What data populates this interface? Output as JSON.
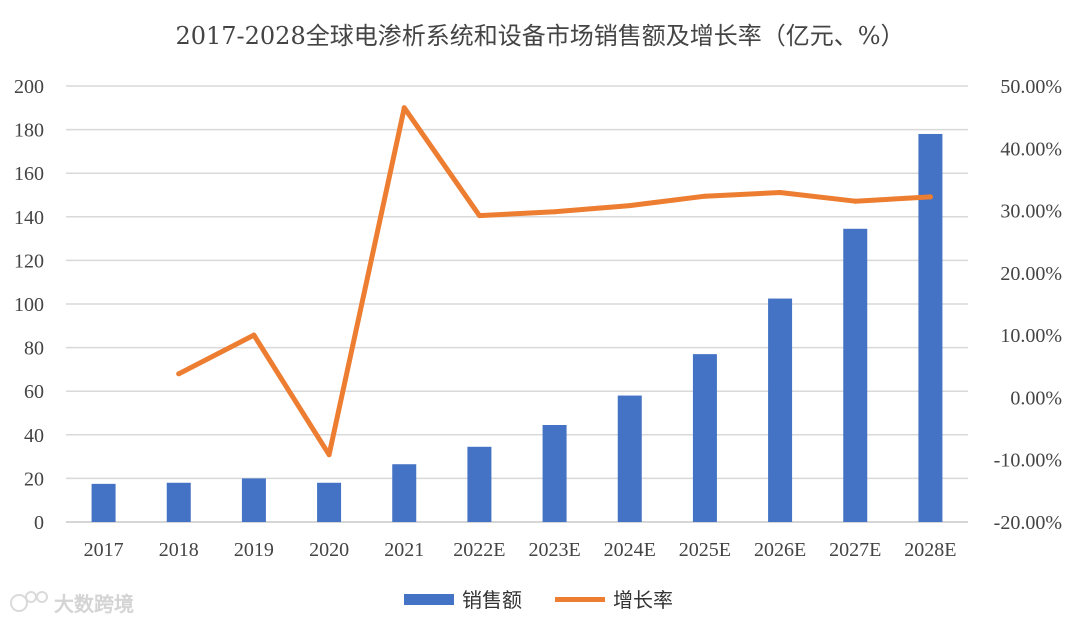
{
  "chart_data": {
    "type": "bar+line",
    "title": "2017-2028全球电渗析系统和设备市场销售额及增长率（亿元、%）",
    "categories": [
      "2017",
      "2018",
      "2019",
      "2020",
      "2021",
      "2022E",
      "2023E",
      "2024E",
      "2025E",
      "2026E",
      "2027E",
      "2028E"
    ],
    "series": [
      {
        "name": "销售额",
        "type": "bar",
        "axis": "left",
        "color": "#4472C4",
        "values": [
          17.5,
          18,
          20,
          18,
          26.5,
          34.5,
          44.5,
          58,
          77,
          102.5,
          134.5,
          178
        ]
      },
      {
        "name": "增长率",
        "type": "line",
        "axis": "right",
        "color": "#ED7D31",
        "values": [
          null,
          3.8,
          10.0,
          -9.2,
          46.5,
          29.2,
          29.8,
          30.8,
          32.3,
          32.9,
          31.5,
          32.2
        ]
      }
    ],
    "y_left": {
      "min": 0,
      "max": 200,
      "ticks": [
        "0",
        "20",
        "40",
        "60",
        "80",
        "100",
        "120",
        "140",
        "160",
        "180",
        "200"
      ]
    },
    "y_right": {
      "min": -20,
      "max": 50,
      "ticks": [
        "-20.00%",
        "-10.00%",
        "0.00%",
        "10.00%",
        "20.00%",
        "30.00%",
        "40.00%",
        "50.00%"
      ]
    },
    "grid": true,
    "legend": "bottom"
  },
  "watermark": {
    "text": "大数跨境",
    "icon": "logo-icon"
  }
}
